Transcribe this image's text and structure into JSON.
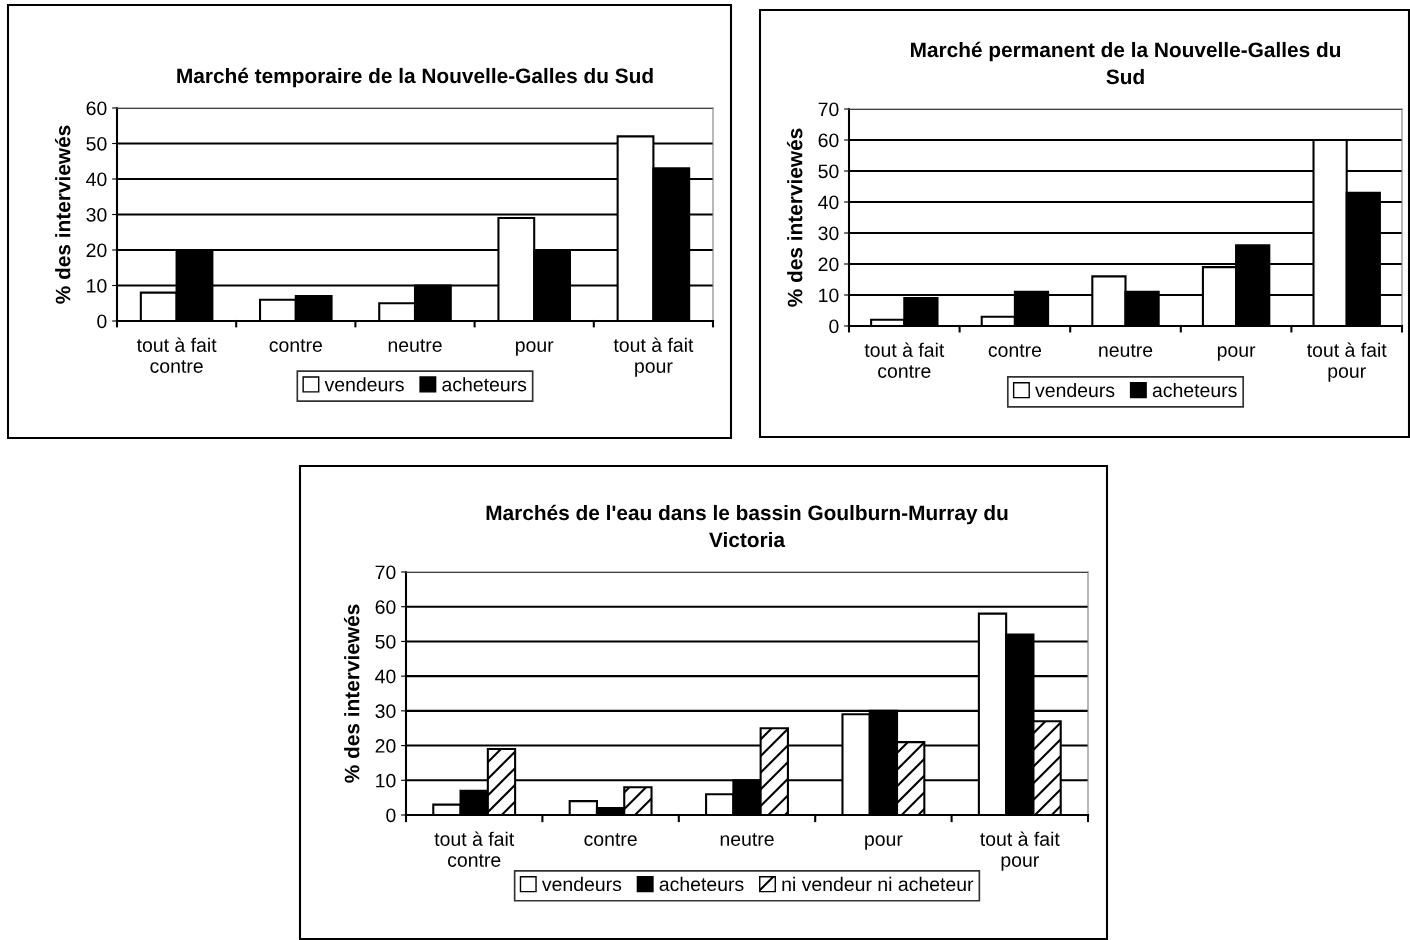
{
  "chart_data": [
    {
      "type": "bar",
      "title": "Marché temporaire de la Nouvelle-Galles du Sud",
      "ylabel": "% des interviewés",
      "categories": [
        "tout à fait\ncontre",
        "contre",
        "neutre",
        "pour",
        "tout à fait\npour"
      ],
      "series": [
        {
          "name": "vendeurs",
          "color": "#ffffff",
          "values": [
            8,
            6,
            5,
            29,
            52
          ]
        },
        {
          "name": "acheteurs",
          "color": "#000000",
          "values": [
            20,
            7,
            10,
            20,
            43
          ]
        }
      ],
      "ylim": [
        0,
        60
      ],
      "yticks": [
        0,
        10,
        20,
        30,
        40,
        50,
        60
      ],
      "grid": "y",
      "legend": "bottom"
    },
    {
      "type": "bar",
      "title": "Marché permanent de la Nouvelle-Galles du\nSud",
      "ylabel": "% des interviewés",
      "categories": [
        "tout à fait\ncontre",
        "contre",
        "neutre",
        "pour",
        "tout à fait\npour"
      ],
      "series": [
        {
          "name": "vendeurs",
          "color": "#ffffff",
          "values": [
            2,
            3,
            16,
            19,
            60
          ]
        },
        {
          "name": "acheteurs",
          "color": "#000000",
          "values": [
            9,
            11,
            11,
            26,
            43
          ]
        }
      ],
      "ylim": [
        0,
        70
      ],
      "yticks": [
        0,
        10,
        20,
        30,
        40,
        50,
        60,
        70
      ],
      "grid": "y",
      "legend": "bottom"
    },
    {
      "type": "bar",
      "title": "Marchés de l'eau dans le bassin Goulburn-Murray du\nVictoria",
      "ylabel": "% des interviewés",
      "categories": [
        "tout à fait\ncontre",
        "contre",
        "neutre",
        "pour",
        "tout à fait\npour"
      ],
      "series": [
        {
          "name": "vendeurs",
          "color": "#ffffff",
          "values": [
            3,
            4,
            6,
            29,
            58
          ]
        },
        {
          "name": "acheteurs",
          "color": "#000000",
          "values": [
            7,
            2,
            10,
            30,
            52
          ]
        },
        {
          "name": "ni vendeur ni acheteur",
          "color": "#000000",
          "values": [
            19,
            8,
            25,
            21,
            27
          ]
        }
      ],
      "ylim": [
        0,
        70
      ],
      "yticks": [
        0,
        10,
        20,
        30,
        40,
        50,
        60,
        70
      ],
      "grid": "y",
      "legend": "bottom"
    }
  ]
}
